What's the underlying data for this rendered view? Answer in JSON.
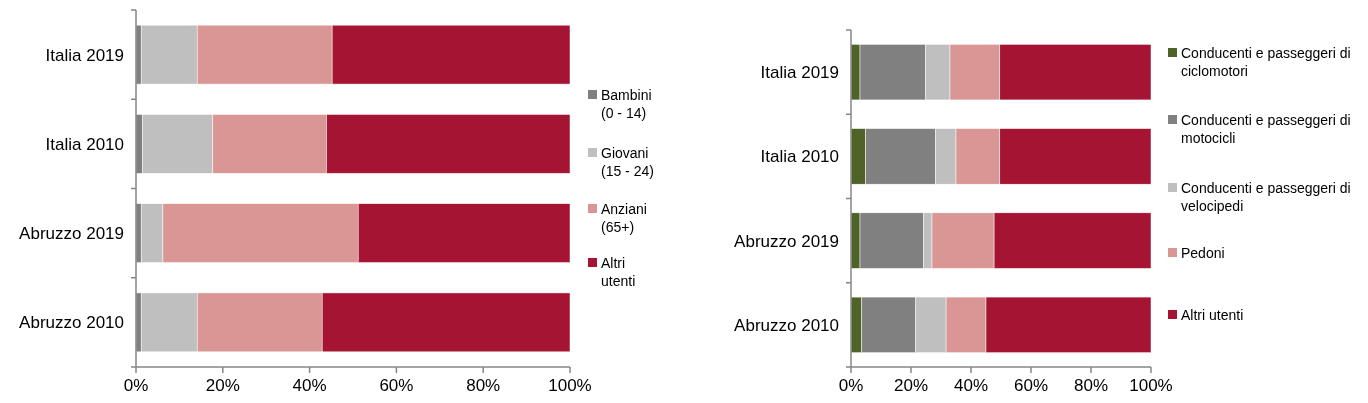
{
  "chart_data": [
    {
      "type": "bar",
      "orientation": "horizontal",
      "stacked": true,
      "categories": [
        "Italia 2019",
        "Italia 2010",
        "Abruzzo 2019",
        "Abruzzo 2010"
      ],
      "series": [
        {
          "name": "Bambini (0 - 14)",
          "color": "#808080",
          "values": [
            1.2,
            1.5,
            1.2,
            1.2
          ]
        },
        {
          "name": "Giovani (15 - 24)",
          "color": "#bfbfbf",
          "values": [
            12.9,
            16.2,
            5.0,
            12.9
          ]
        },
        {
          "name": "Anziani (65+)",
          "color": "#d99694",
          "values": [
            31.1,
            26.2,
            45.0,
            28.8
          ]
        },
        {
          "name": "Altri utenti",
          "color": "#a51432",
          "values": [
            54.8,
            56.1,
            48.8,
            57.1
          ]
        }
      ],
      "xlim": [
        0,
        100
      ],
      "xticks": [
        {
          "value": 0,
          "label": "0%"
        },
        {
          "value": 20,
          "label": "20%"
        },
        {
          "value": 40,
          "label": "40%"
        },
        {
          "value": 60,
          "label": "60%"
        },
        {
          "value": 80,
          "label": "80%"
        },
        {
          "value": 100,
          "label": "100%"
        }
      ],
      "grid": false,
      "legend": "right"
    },
    {
      "type": "bar",
      "orientation": "horizontal",
      "stacked": true,
      "categories": [
        "Italia 2019",
        "Italia 2010",
        "Abruzzo 2019",
        "Abruzzo 2010"
      ],
      "series": [
        {
          "name": "Conducenti e passeggeri di ciclomotori",
          "color": "#4f6228",
          "values": [
            3.0,
            4.9,
            3.0,
            3.6
          ]
        },
        {
          "name": "Conducenti e passeggeri di motocicli",
          "color": "#808080",
          "values": [
            21.9,
            23.3,
            21.2,
            18.0
          ]
        },
        {
          "name": "Conducenti e passeggeri di velocipedi",
          "color": "#bfbfbf",
          "values": [
            8.1,
            6.8,
            2.8,
            10.1
          ]
        },
        {
          "name": "Pedoni",
          "color": "#d99694",
          "values": [
            16.6,
            14.6,
            20.7,
            13.3
          ]
        },
        {
          "name": "Altri utenti",
          "color": "#a51432",
          "values": [
            50.4,
            50.4,
            52.3,
            55.0
          ]
        }
      ],
      "xlim": [
        0,
        100
      ],
      "xticks": [
        {
          "value": 0,
          "label": "0%"
        },
        {
          "value": 20,
          "label": "20%"
        },
        {
          "value": 40,
          "label": "40%"
        },
        {
          "value": 60,
          "label": "60%"
        },
        {
          "value": 80,
          "label": "80%"
        },
        {
          "value": 100,
          "label": "100%"
        }
      ],
      "grid": false,
      "legend": "right"
    }
  ]
}
